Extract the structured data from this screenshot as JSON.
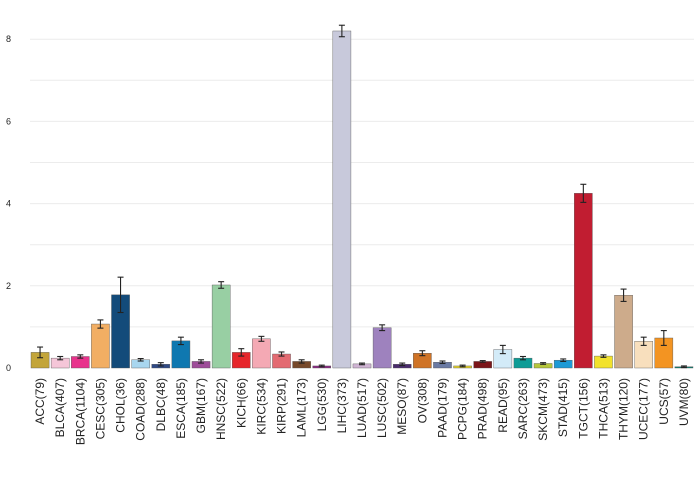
{
  "chart_data": {
    "type": "bar",
    "title": "",
    "xlabel": "",
    "ylabel": "",
    "ylim": [
      0,
      8.4
    ],
    "yticks": [
      0,
      2,
      4,
      6,
      8
    ],
    "grid": true,
    "categories": [
      "ACC(79)",
      "BLCA(407)",
      "BRCA(1104)",
      "CESC(305)",
      "CHOL(36)",
      "COAD(288)",
      "DLBC(48)",
      "ESCA(185)",
      "GBM(167)",
      "HNSC(522)",
      "KICH(66)",
      "KIRC(534)",
      "KIRP(291)",
      "LAML(173)",
      "LGG(530)",
      "LIHC(373)",
      "LUAD(517)",
      "LUSC(502)",
      "MESO(87)",
      "OV(308)",
      "PAAD(179)",
      "PCPG(184)",
      "PRAD(498)",
      "READ(95)",
      "SARC(263)",
      "SKCM(473)",
      "STAD(415)",
      "TGCT(156)",
      "THCA(513)",
      "THYM(120)",
      "UCEC(177)",
      "UCS(57)",
      "UVM(80)"
    ],
    "values": [
      0.38,
      0.24,
      0.28,
      1.07,
      1.78,
      0.2,
      0.09,
      0.66,
      0.16,
      2.02,
      0.38,
      0.71,
      0.34,
      0.16,
      0.05,
      8.2,
      0.1,
      0.98,
      0.09,
      0.36,
      0.14,
      0.05,
      0.16,
      0.45,
      0.24,
      0.11,
      0.19,
      4.25,
      0.29,
      1.77,
      0.65,
      0.73,
      0.03
    ],
    "errors": [
      0.13,
      0.04,
      0.04,
      0.1,
      0.43,
      0.03,
      0.04,
      0.09,
      0.04,
      0.08,
      0.09,
      0.06,
      0.05,
      0.04,
      0.02,
      0.14,
      0.02,
      0.07,
      0.03,
      0.06,
      0.03,
      0.02,
      0.02,
      0.1,
      0.04,
      0.02,
      0.03,
      0.22,
      0.03,
      0.15,
      0.1,
      0.18,
      0.02
    ],
    "colors": [
      "#c3a53a",
      "#f5c6d8",
      "#e8338c",
      "#f2ae63",
      "#134b7a",
      "#a8d6ef",
      "#304a86",
      "#0f78b0",
      "#9e4d99",
      "#98cfa3",
      "#e6252b",
      "#f4a9b4",
      "#e36a71",
      "#77492a",
      "#8b2a83",
      "#c8c9db",
      "#cfb4d3",
      "#9e82be",
      "#4a2b6e",
      "#cf7326",
      "#6a7aa3",
      "#e2d02c",
      "#7b1519",
      "#d3ebf8",
      "#0e9c96",
      "#b6c63b",
      "#1d9ad6",
      "#c11d31",
      "#f2e22c",
      "#cdab8b",
      "#f8dfbd",
      "#f39422",
      "#0e7d6f"
    ]
  }
}
